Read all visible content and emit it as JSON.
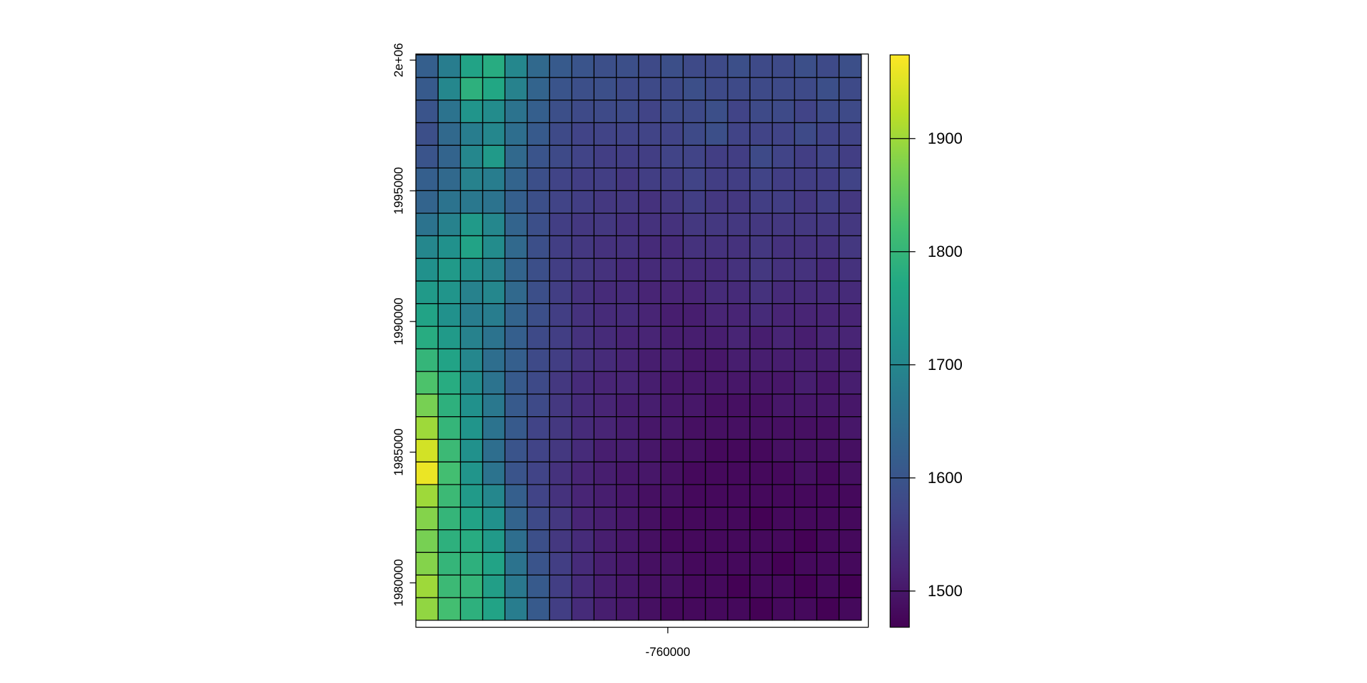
{
  "chart_data": {
    "type": "heatmap",
    "colormap": "viridis",
    "xlim": [
      -769633,
      -752333
    ],
    "ylim": [
      1978300,
      2000233
    ],
    "extent": {
      "x": [
        -769633,
        -752600
      ],
      "y": [
        1978567,
        2000200
      ]
    },
    "xticks": [
      -760000
    ],
    "yticks": [
      {
        "value": 1980000,
        "label": "1980000"
      },
      {
        "value": 1985000,
        "label": "1985000"
      },
      {
        "value": 1990000,
        "label": "1990000"
      },
      {
        "value": 1995000,
        "label": "1995000"
      },
      {
        "value": 2000000,
        "label": "2e+06"
      }
    ],
    "colorbar_lim": [
      1468,
      1974
    ],
    "colorbar_ticks": [
      1500,
      1600,
      1700,
      1800,
      1900
    ],
    "values": [
      [
        1620,
        1680,
        1760,
        1780,
        1700,
        1640,
        1610,
        1600,
        1590,
        1590,
        1580,
        1590,
        1580,
        1580,
        1590,
        1580,
        1580,
        1590,
        1580,
        1590
      ],
      [
        1610,
        1700,
        1790,
        1770,
        1690,
        1630,
        1600,
        1590,
        1590,
        1580,
        1580,
        1580,
        1590,
        1580,
        1580,
        1580,
        1580,
        1580,
        1590,
        1580
      ],
      [
        1600,
        1660,
        1730,
        1710,
        1660,
        1620,
        1590,
        1580,
        1580,
        1580,
        1570,
        1580,
        1580,
        1590,
        1570,
        1580,
        1580,
        1570,
        1580,
        1580
      ],
      [
        1590,
        1640,
        1680,
        1700,
        1650,
        1610,
        1580,
        1570,
        1570,
        1570,
        1570,
        1570,
        1580,
        1590,
        1570,
        1570,
        1570,
        1580,
        1570,
        1570
      ],
      [
        1600,
        1630,
        1700,
        1740,
        1640,
        1600,
        1580,
        1570,
        1560,
        1560,
        1560,
        1570,
        1570,
        1560,
        1560,
        1580,
        1570,
        1560,
        1570,
        1560
      ],
      [
        1620,
        1640,
        1690,
        1680,
        1630,
        1590,
        1570,
        1560,
        1560,
        1550,
        1560,
        1560,
        1570,
        1560,
        1560,
        1570,
        1560,
        1560,
        1560,
        1570
      ],
      [
        1630,
        1660,
        1670,
        1660,
        1620,
        1590,
        1570,
        1560,
        1550,
        1550,
        1540,
        1550,
        1560,
        1550,
        1550,
        1560,
        1560,
        1550,
        1560,
        1550
      ],
      [
        1660,
        1690,
        1740,
        1700,
        1630,
        1590,
        1560,
        1550,
        1550,
        1540,
        1540,
        1540,
        1550,
        1550,
        1550,
        1550,
        1550,
        1550,
        1550,
        1550
      ],
      [
        1700,
        1720,
        1760,
        1710,
        1640,
        1590,
        1560,
        1550,
        1540,
        1540,
        1530,
        1530,
        1540,
        1540,
        1540,
        1550,
        1540,
        1540,
        1540,
        1550
      ],
      [
        1720,
        1740,
        1720,
        1690,
        1630,
        1590,
        1560,
        1550,
        1540,
        1530,
        1530,
        1530,
        1530,
        1530,
        1540,
        1550,
        1540,
        1540,
        1530,
        1540
      ],
      [
        1740,
        1730,
        1690,
        1700,
        1640,
        1590,
        1560,
        1540,
        1530,
        1530,
        1520,
        1520,
        1520,
        1530,
        1530,
        1540,
        1530,
        1530,
        1530,
        1530
      ],
      [
        1760,
        1720,
        1680,
        1680,
        1630,
        1590,
        1560,
        1540,
        1530,
        1530,
        1520,
        1510,
        1510,
        1520,
        1520,
        1530,
        1520,
        1520,
        1520,
        1520
      ],
      [
        1780,
        1740,
        1690,
        1660,
        1620,
        1580,
        1560,
        1540,
        1530,
        1520,
        1520,
        1510,
        1510,
        1510,
        1520,
        1510,
        1520,
        1510,
        1520,
        1520
      ],
      [
        1800,
        1760,
        1700,
        1650,
        1620,
        1580,
        1560,
        1540,
        1530,
        1520,
        1510,
        1510,
        1500,
        1500,
        1510,
        1510,
        1510,
        1510,
        1510,
        1510
      ],
      [
        1830,
        1780,
        1710,
        1660,
        1610,
        1580,
        1550,
        1530,
        1520,
        1520,
        1510,
        1500,
        1500,
        1500,
        1500,
        1500,
        1500,
        1510,
        1500,
        1510
      ],
      [
        1870,
        1790,
        1720,
        1670,
        1610,
        1580,
        1550,
        1530,
        1520,
        1510,
        1510,
        1500,
        1500,
        1490,
        1490,
        1490,
        1500,
        1500,
        1500,
        1500
      ],
      [
        1900,
        1800,
        1730,
        1660,
        1610,
        1570,
        1550,
        1530,
        1520,
        1510,
        1500,
        1500,
        1490,
        1490,
        1490,
        1490,
        1490,
        1490,
        1490,
        1500
      ],
      [
        1940,
        1810,
        1720,
        1650,
        1600,
        1570,
        1550,
        1530,
        1510,
        1510,
        1500,
        1490,
        1490,
        1480,
        1480,
        1480,
        1490,
        1490,
        1490,
        1490
      ],
      [
        1960,
        1820,
        1730,
        1660,
        1600,
        1570,
        1540,
        1520,
        1510,
        1500,
        1500,
        1490,
        1480,
        1480,
        1480,
        1480,
        1480,
        1490,
        1480,
        1490
      ],
      [
        1900,
        1810,
        1740,
        1700,
        1620,
        1570,
        1540,
        1520,
        1510,
        1500,
        1490,
        1490,
        1480,
        1480,
        1480,
        1480,
        1480,
        1480,
        1480,
        1480
      ],
      [
        1880,
        1800,
        1760,
        1720,
        1630,
        1580,
        1550,
        1520,
        1510,
        1500,
        1490,
        1480,
        1480,
        1480,
        1480,
        1470,
        1480,
        1480,
        1480,
        1480
      ],
      [
        1870,
        1790,
        1780,
        1740,
        1650,
        1590,
        1550,
        1530,
        1510,
        1500,
        1490,
        1480,
        1480,
        1480,
        1480,
        1480,
        1480,
        1470,
        1480,
        1480
      ],
      [
        1880,
        1800,
        1790,
        1760,
        1660,
        1600,
        1560,
        1530,
        1510,
        1500,
        1490,
        1490,
        1480,
        1480,
        1480,
        1480,
        1470,
        1480,
        1480,
        1480
      ],
      [
        1900,
        1810,
        1800,
        1750,
        1670,
        1610,
        1560,
        1530,
        1510,
        1500,
        1490,
        1490,
        1480,
        1480,
        1470,
        1480,
        1480,
        1470,
        1480,
        1470
      ],
      [
        1890,
        1820,
        1790,
        1760,
        1680,
        1610,
        1560,
        1530,
        1510,
        1500,
        1490,
        1480,
        1480,
        1480,
        1480,
        1470,
        1480,
        1480,
        1470,
        1480
      ]
    ]
  }
}
